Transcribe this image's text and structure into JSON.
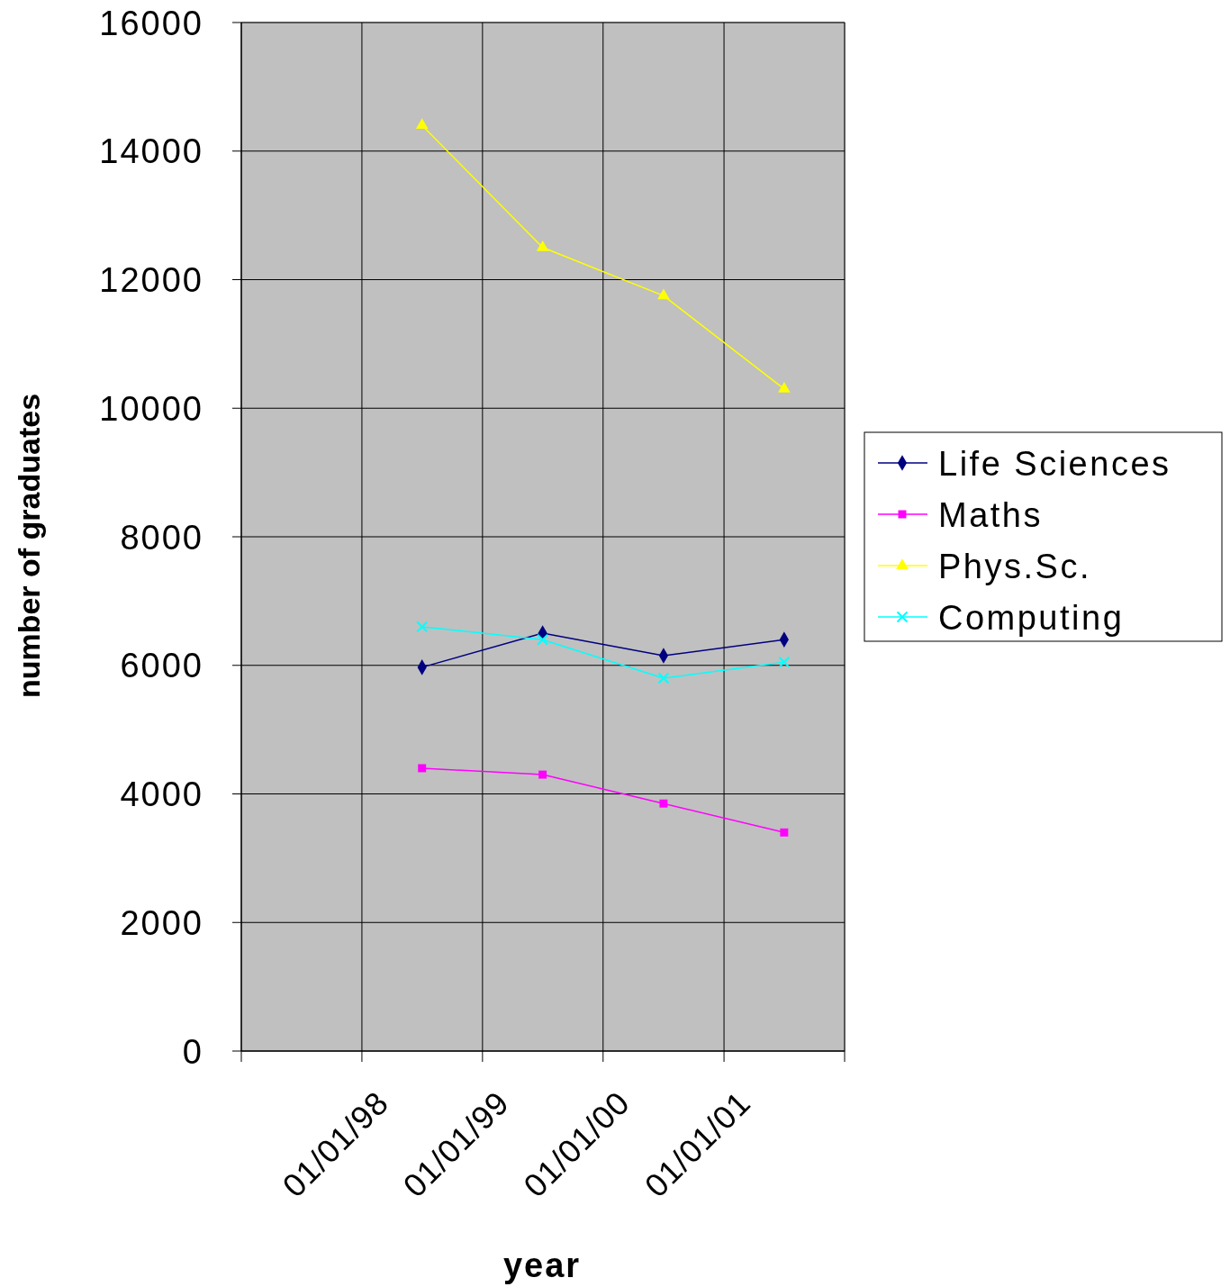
{
  "chart_data": {
    "type": "line",
    "xlabel": "year",
    "ylabel": "number of graduates",
    "x": [
      "1998-07-02",
      "1999-07-02",
      "2000-07-02",
      "2001-07-02"
    ],
    "xlim": [
      "1997-01-01",
      "2002-01-01"
    ],
    "xticks": [
      {
        "value": "1997-01-01",
        "label": null
      },
      {
        "value": "1998-01-01",
        "label": "01/01/98"
      },
      {
        "value": "1999-01-01",
        "label": "01/01/99"
      },
      {
        "value": "2000-01-01",
        "label": "01/01/00"
      },
      {
        "value": "2001-01-01",
        "label": "01/01/01"
      },
      {
        "value": "2002-01-01",
        "label": null
      }
    ],
    "ylim": [
      0,
      16000
    ],
    "yticks": [
      0,
      2000,
      4000,
      6000,
      8000,
      10000,
      12000,
      14000,
      16000
    ],
    "grid": true,
    "legend": "right",
    "line_style": "solid",
    "series": [
      {
        "name": "Life Sciences",
        "color": "#000080",
        "marker": "diamond",
        "values": [
          5970,
          6500,
          6150,
          6400
        ]
      },
      {
        "name": "Maths",
        "color": "#ff00ff",
        "marker": "square",
        "values": [
          4400,
          4300,
          3850,
          3400
        ]
      },
      {
        "name": "Phys.Sc.",
        "color": "#ffff00",
        "marker": "triangle",
        "values": [
          14400,
          12500,
          11750,
          10300
        ]
      },
      {
        "name": "Computing",
        "color": "#00ffff",
        "marker": "cross",
        "values": [
          6600,
          6400,
          5800,
          6050
        ]
      }
    ]
  }
}
